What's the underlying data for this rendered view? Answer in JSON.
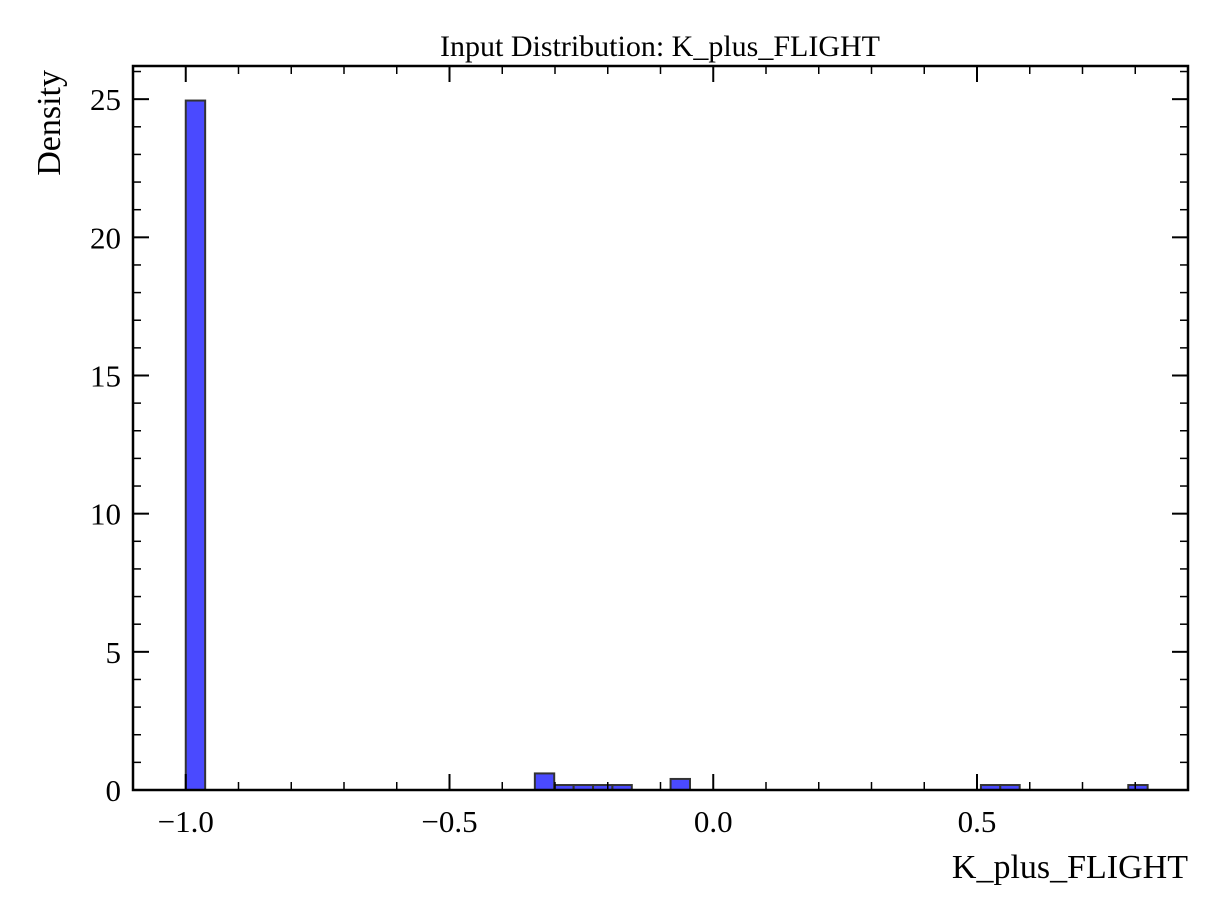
{
  "chart_data": {
    "type": "bar",
    "title": "Input Distribution: K_plus_FLIGHT",
    "xlabel": "K_plus_FLIGHT",
    "ylabel": "Density",
    "xlim": [
      -1.1,
      0.9
    ],
    "ylim": [
      0,
      26.2
    ],
    "grid": false,
    "x_ticks": [
      -1.0,
      -0.5,
      0.0,
      0.5
    ],
    "x_tick_labels": [
      "−1.0",
      "−0.5",
      "0.0",
      "0.5"
    ],
    "y_ticks": [
      0,
      5,
      10,
      15,
      20,
      25
    ],
    "y_tick_labels": [
      "0",
      "5",
      "10",
      "15",
      "20",
      "25"
    ],
    "bar_color": "#4040ff",
    "edge_color": "#333333",
    "bins": [
      {
        "x0": -1.0,
        "x1": -0.9632,
        "value": 24.95
      },
      {
        "x0": -0.3382,
        "x1": -0.3015,
        "value": 0.6
      },
      {
        "x0": -0.3015,
        "x1": -0.2647,
        "value": 0.18
      },
      {
        "x0": -0.2647,
        "x1": -0.2279,
        "value": 0.18
      },
      {
        "x0": -0.2279,
        "x1": -0.1912,
        "value": 0.18
      },
      {
        "x0": -0.1912,
        "x1": -0.1544,
        "value": 0.18
      },
      {
        "x0": -0.0809,
        "x1": -0.0441,
        "value": 0.4
      },
      {
        "x0": 0.5074,
        "x1": 0.5441,
        "value": 0.18
      },
      {
        "x0": 0.5441,
        "x1": 0.5809,
        "value": 0.18
      },
      {
        "x0": 0.7868,
        "x1": 0.8235,
        "value": 0.18
      }
    ]
  }
}
